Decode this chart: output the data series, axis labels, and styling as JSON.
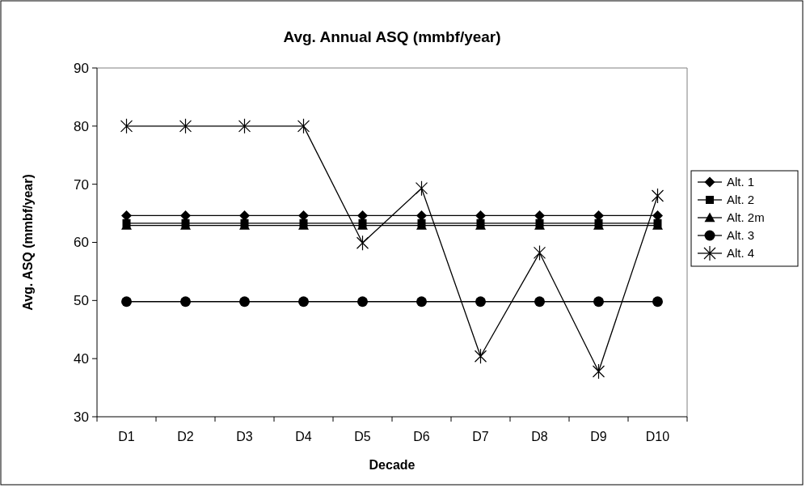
{
  "chart_data": {
    "type": "line",
    "title": "Avg. Annual ASQ (mmbf/year)",
    "xlabel": "Decade",
    "ylabel": "Avg. ASQ (mmbf/year)",
    "categories": [
      "D1",
      "D2",
      "D3",
      "D4",
      "D5",
      "D6",
      "D7",
      "D8",
      "D9",
      "D10"
    ],
    "series": [
      {
        "name": "Alt. 1",
        "color": "#000000",
        "marker": "diamond",
        "values": [
          64.6,
          64.6,
          64.6,
          64.6,
          64.6,
          64.6,
          64.6,
          64.6,
          64.6,
          64.6
        ]
      },
      {
        "name": "Alt. 2",
        "color": "#000000",
        "marker": "square",
        "values": [
          63.3,
          63.3,
          63.3,
          63.3,
          63.3,
          63.3,
          63.3,
          63.3,
          63.3,
          63.3
        ]
      },
      {
        "name": "Alt. 2m",
        "color": "#000000",
        "marker": "triangle",
        "values": [
          62.9,
          62.9,
          62.9,
          62.9,
          62.9,
          62.9,
          62.9,
          62.9,
          62.9,
          62.9
        ]
      },
      {
        "name": "Alt. 3",
        "color": "#000000",
        "marker": "circle",
        "values": [
          49.8,
          49.8,
          49.8,
          49.8,
          49.8,
          49.8,
          49.8,
          49.8,
          49.8,
          49.8
        ]
      },
      {
        "name": "Alt. 4",
        "color": "#000000",
        "marker": "cross",
        "values": [
          80,
          80,
          80,
          80,
          59.9,
          69.3,
          40.4,
          58.2,
          37.8,
          68
        ]
      }
    ],
    "ylim": [
      30,
      90
    ],
    "yticks": [
      30,
      40,
      50,
      60,
      70,
      80,
      90
    ],
    "grid": false,
    "legend": "right"
  }
}
